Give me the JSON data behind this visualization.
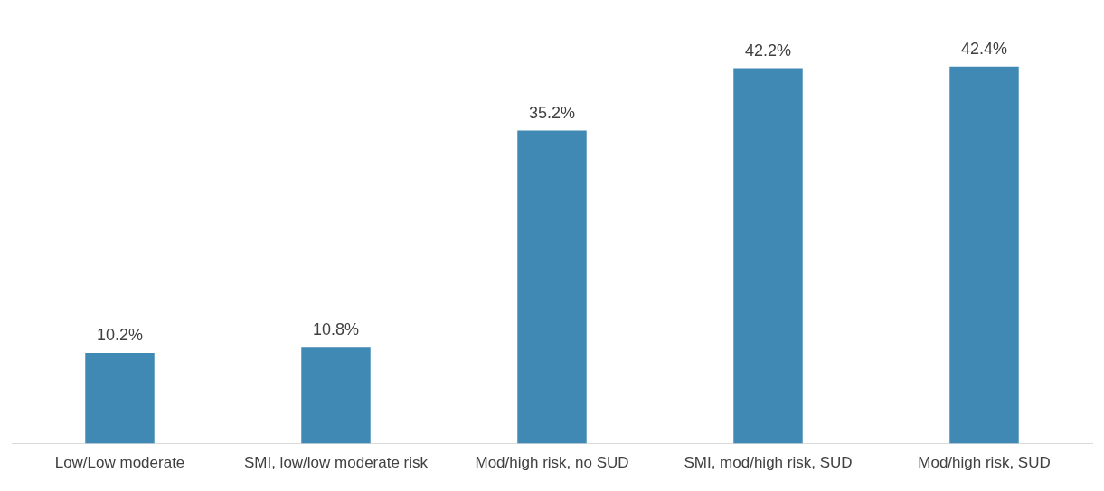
{
  "chart_data": {
    "type": "bar",
    "categories": [
      "Low/Low moderate",
      "SMI, low/low moderate risk",
      "Mod/high risk, no SUD",
      "SMI, mod/high risk, SUD",
      "Mod/high risk, SUD"
    ],
    "values": [
      10.2,
      10.8,
      35.2,
      42.2,
      42.4
    ],
    "value_labels": [
      "10.2%",
      "10.8%",
      "35.2%",
      "42.2%",
      "42.4%"
    ],
    "color": "#3f89b4",
    "grid": false,
    "legend": false
  }
}
